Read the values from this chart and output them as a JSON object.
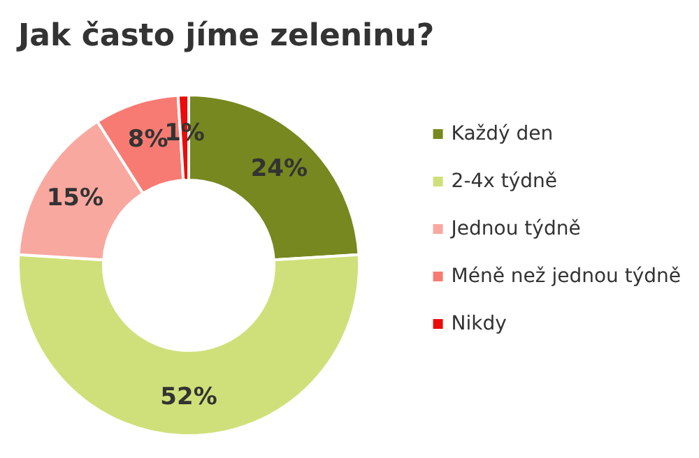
{
  "chart_data": {
    "type": "donut",
    "title": "Jak často jíme zeleninu?",
    "categories": [
      "Každý den",
      "2-4x týdně",
      "Jednou týdně",
      "Méně než jednou týdně",
      "Nikdy"
    ],
    "values": [
      24,
      52,
      15,
      8,
      1
    ],
    "value_labels": [
      "24%",
      "52%",
      "15%",
      "8%",
      "1%"
    ],
    "colors": [
      "#76881f",
      "#cfe07a",
      "#f9a8a0",
      "#f77b72",
      "#ee0a0a"
    ],
    "legend": "right"
  }
}
